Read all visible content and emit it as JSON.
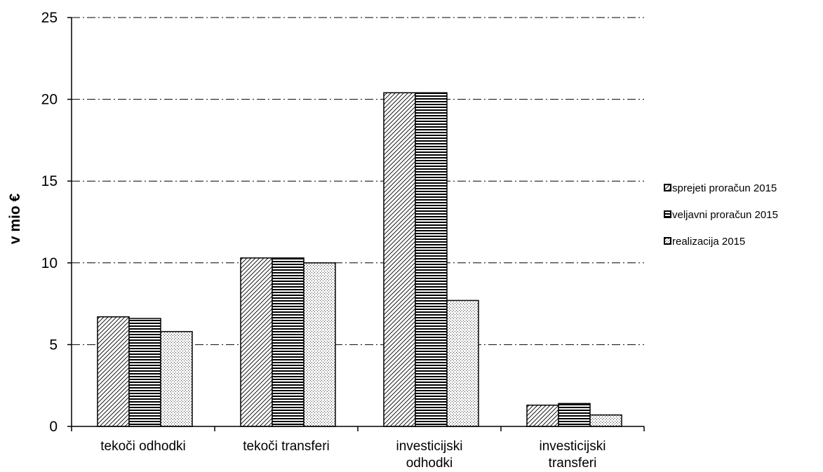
{
  "chart_data": {
    "type": "bar",
    "categories": [
      [
        "tekoči odhodki"
      ],
      [
        "tekoči transferi"
      ],
      [
        "investicijski",
        "odhodki"
      ],
      [
        "investicijski",
        "transferi"
      ]
    ],
    "series": [
      {
        "name": "sprejeti proračun 2015",
        "pattern": "diagonal-hatch",
        "values": [
          6.7,
          10.3,
          20.4,
          1.3
        ]
      },
      {
        "name": "veljavni proračun 2015",
        "pattern": "horizontal-lines",
        "values": [
          6.6,
          10.3,
          20.4,
          1.4
        ]
      },
      {
        "name": "realizacija 2015",
        "pattern": "dots",
        "values": [
          5.8,
          10.0,
          7.7,
          0.7
        ]
      }
    ],
    "ylabel": "v mio €",
    "ylim": [
      0,
      25
    ],
    "yticks": [
      0,
      5,
      10,
      15,
      20,
      25
    ],
    "grid": "horizontal dash-dot",
    "legend": "right"
  }
}
